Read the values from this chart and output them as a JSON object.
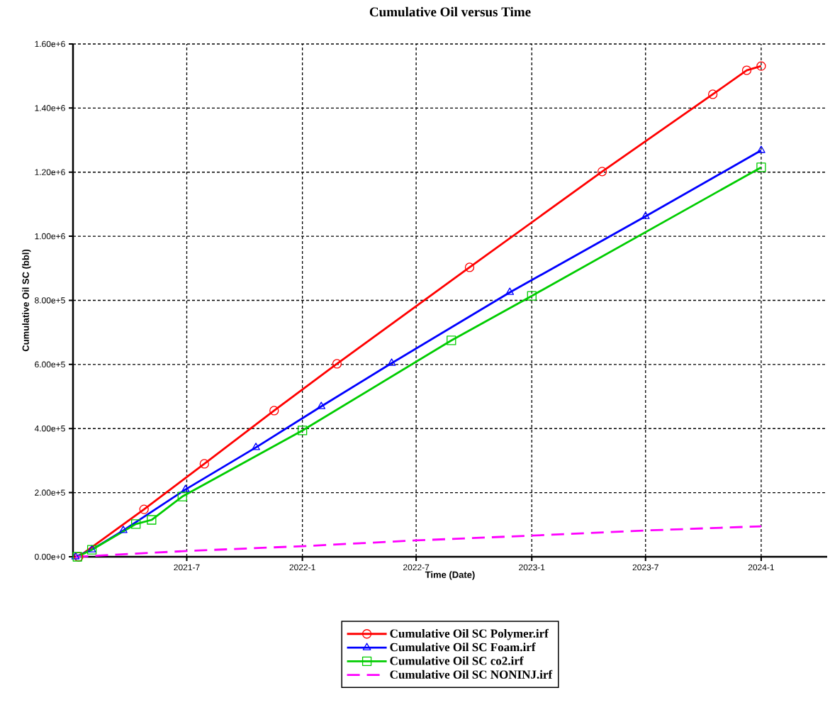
{
  "chart_data": {
    "type": "line",
    "title": "Cumulative Oil versus Time",
    "xlabel": "Time (Date)",
    "ylabel": "Cumulative Oil SC (bbl)",
    "xlim": [
      "2021-01-01",
      "2024-04-15"
    ],
    "xticks": [
      {
        "value": "2021-07-01",
        "label": "2021-7"
      },
      {
        "value": "2022-01-01",
        "label": "2022-1"
      },
      {
        "value": "2022-07-01",
        "label": "2022-7"
      },
      {
        "value": "2023-01-01",
        "label": "2023-1"
      },
      {
        "value": "2023-07-01",
        "label": "2023-7"
      },
      {
        "value": "2024-01-01",
        "label": "2024-1"
      }
    ],
    "ylim": [
      0,
      1600000
    ],
    "yticks": [
      {
        "value": 0,
        "label": "0.00e+0"
      },
      {
        "value": 200000,
        "label": "2.00e+5"
      },
      {
        "value": 400000,
        "label": "4.00e+5"
      },
      {
        "value": 600000,
        "label": "6.00e+5"
      },
      {
        "value": 800000,
        "label": "8.00e+5"
      },
      {
        "value": 1000000,
        "label": "1.00e+6"
      },
      {
        "value": 1200000,
        "label": "1.20e+6"
      },
      {
        "value": 1400000,
        "label": "1.40e+6"
      },
      {
        "value": 1600000,
        "label": "1.60e+6"
      }
    ],
    "grid": true,
    "legend": "bottom",
    "series": [
      {
        "name": "Cumulative Oil SC Polymer.irf",
        "color": "#ff0000",
        "marker": "circle",
        "line_style": "solid",
        "x": [
          "2021-01-10",
          "2021-04-24",
          "2021-07-29",
          "2021-11-17",
          "2022-02-25",
          "2022-09-24",
          "2023-04-23",
          "2023-10-16",
          "2023-12-09",
          "2024-01-01"
        ],
        "values": [
          0,
          148000,
          290000,
          456000,
          602000,
          903000,
          1202000,
          1443000,
          1518000,
          1531000
        ]
      },
      {
        "name": "Cumulative Oil SC Foam.irf",
        "color": "#0000ff",
        "marker": "triangle",
        "line_style": "solid",
        "x": [
          "2021-01-05",
          "2021-01-31",
          "2021-03-22",
          "2021-06-29",
          "2021-10-19",
          "2022-01-31",
          "2022-05-23",
          "2022-11-27",
          "2023-07-01",
          "2024-01-01"
        ],
        "values": [
          0,
          22000,
          82000,
          210000,
          341000,
          469000,
          604000,
          825000,
          1062000,
          1268000
        ]
      },
      {
        "name": "Cumulative Oil SC co2.irf",
        "color": "#00cc00",
        "marker": "square",
        "line_style": "solid",
        "x": [
          "2021-01-08",
          "2021-01-31",
          "2021-04-11",
          "2021-05-06",
          "2021-06-24",
          "2022-01-01",
          "2022-08-26",
          "2023-01-01",
          "2024-01-01"
        ],
        "values": [
          0,
          22000,
          102000,
          115000,
          188000,
          394000,
          675000,
          814000,
          1215000
        ]
      },
      {
        "name": "Cumulative Oil SC NONINJ.irf",
        "color": "#ff00ff",
        "marker": "none",
        "line_style": "dashed",
        "x": [
          "2021-01-05",
          "2021-07-01",
          "2022-01-01",
          "2022-07-01",
          "2023-01-01",
          "2023-07-01",
          "2024-01-01"
        ],
        "values": [
          0,
          18000,
          33000,
          51000,
          66000,
          82000,
          95000
        ]
      }
    ]
  }
}
